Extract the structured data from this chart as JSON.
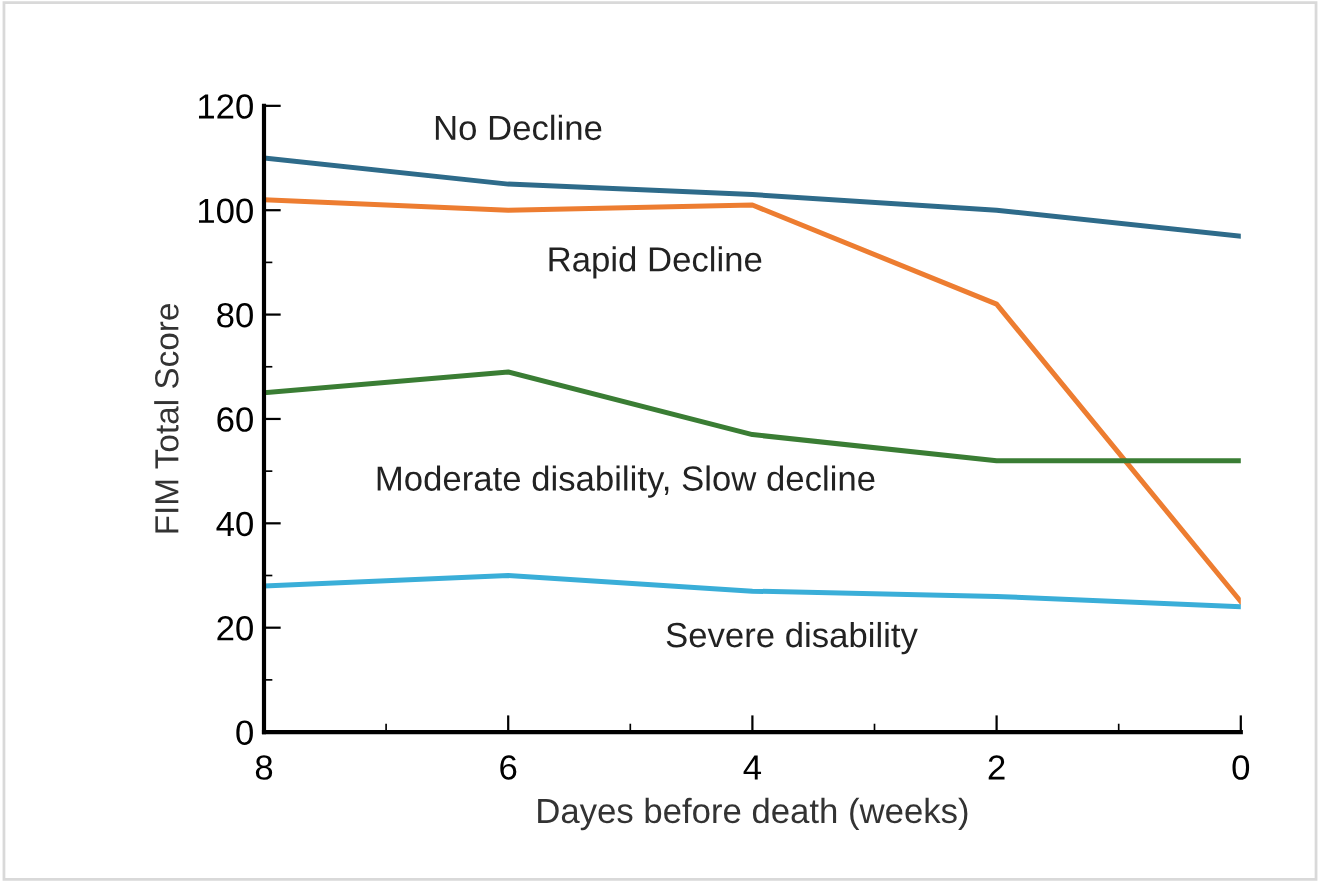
{
  "chart_data": {
    "type": "line",
    "xlabel": "Dayes before death (weeks)",
    "ylabel": "FIM Total Score",
    "x": [
      8,
      6,
      4,
      2,
      0
    ],
    "series": [
      {
        "name": "No Decline",
        "color": "#2e6b8a",
        "values": [
          110,
          105,
          103,
          100,
          95
        ]
      },
      {
        "name": "Rapid Decline",
        "color": "#ed7d31",
        "values": [
          102,
          100,
          101,
          82,
          25
        ]
      },
      {
        "name": "Moderate disability, Slow decline",
        "color": "#3a7d34",
        "values": [
          65,
          69,
          57,
          52,
          52
        ]
      },
      {
        "name": "Severe disability",
        "color": "#3aaed8",
        "values": [
          28,
          30,
          27,
          26,
          24
        ]
      }
    ],
    "xlim": [
      8,
      0
    ],
    "xticks": [
      8,
      6,
      4,
      2,
      0
    ],
    "ylim": [
      0,
      120
    ],
    "yticks": [
      0,
      20,
      40,
      60,
      80,
      100,
      120
    ],
    "grid": false,
    "legend": false,
    "marker": "none",
    "line_style": "solid"
  }
}
